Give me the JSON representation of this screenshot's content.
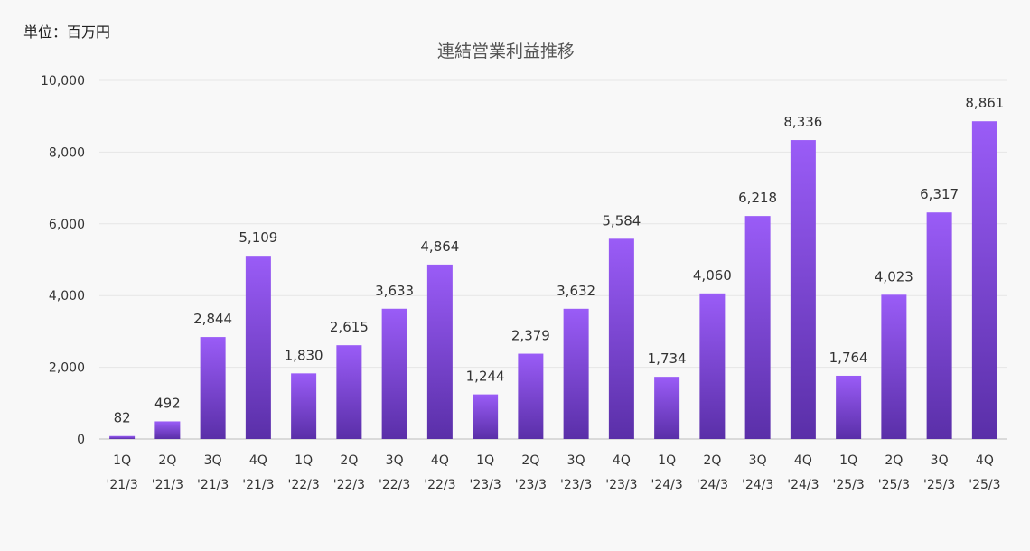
{
  "unit_label": "単位：百万円",
  "chart_data": {
    "type": "bar",
    "title": "連結営業利益推移",
    "xlabel": "",
    "ylabel": "",
    "ylim": [
      0,
      10000
    ],
    "yticks": [
      0,
      2000,
      4000,
      6000,
      8000,
      10000
    ],
    "ytick_labels": [
      "0",
      "2,000",
      "4,000",
      "6,000",
      "8,000",
      "10,000"
    ],
    "grid": true,
    "legend": "none",
    "colors": {
      "bar_top": "#9a5cf7",
      "bar_bottom": "#5a2fa8",
      "grid": "#e6e6e6",
      "axis": "#bbbbbb"
    },
    "categories": [
      [
        "1Q",
        "'21/3"
      ],
      [
        "2Q",
        "'21/3"
      ],
      [
        "3Q",
        "'21/3"
      ],
      [
        "4Q",
        "'21/3"
      ],
      [
        "1Q",
        "'22/3"
      ],
      [
        "2Q",
        "'22/3"
      ],
      [
        "3Q",
        "'22/3"
      ],
      [
        "4Q",
        "'22/3"
      ],
      [
        "1Q",
        "'23/3"
      ],
      [
        "2Q",
        "'23/3"
      ],
      [
        "3Q",
        "'23/3"
      ],
      [
        "4Q",
        "'23/3"
      ],
      [
        "1Q",
        "'24/3"
      ],
      [
        "2Q",
        "'24/3"
      ],
      [
        "3Q",
        "'24/3"
      ],
      [
        "4Q",
        "'24/3"
      ],
      [
        "1Q",
        "'25/3"
      ],
      [
        "2Q",
        "'25/3"
      ],
      [
        "3Q",
        "'25/3"
      ],
      [
        "4Q",
        "'25/3"
      ]
    ],
    "values": [
      82,
      492,
      2844,
      5109,
      1830,
      2615,
      3633,
      4864,
      1244,
      2379,
      3632,
      5584,
      1734,
      4060,
      6218,
      8336,
      1764,
      4023,
      6317,
      8861
    ],
    "value_labels": [
      "82",
      "492",
      "2,844",
      "5,109",
      "1,830",
      "2,615",
      "3,633",
      "4,864",
      "1,244",
      "2,379",
      "3,632",
      "5,584",
      "1,734",
      "4,060",
      "6,218",
      "8,336",
      "1,764",
      "4,023",
      "6,317",
      "8,861"
    ]
  }
}
